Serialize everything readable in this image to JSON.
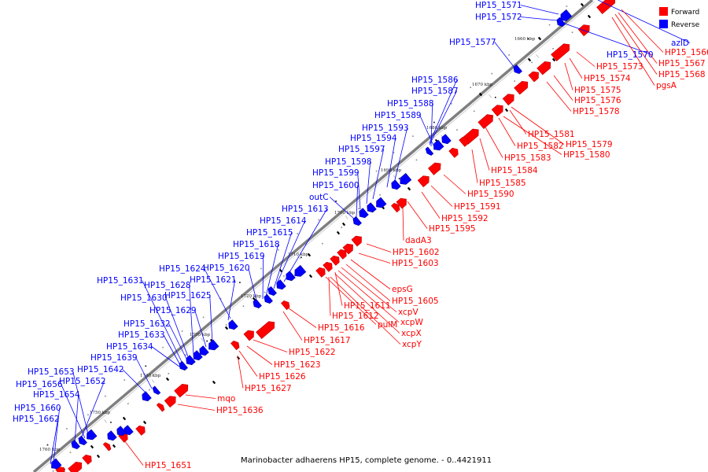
{
  "legend": {
    "forward_label": "Forward",
    "reverse_label": "Reverse",
    "forward_color": "#ff0000",
    "reverse_color": "#0000ff"
  },
  "footer": "Marinobacter adhaerens HP15, complete genome. - 0..4421911",
  "colors": {
    "backbone": "#808080",
    "tick": "#000000"
  },
  "scale_ticks": [
    {
      "label": "1660 kbp"
    },
    {
      "label": "1670 kbp"
    },
    {
      "label": "1680 kbp"
    },
    {
      "label": "1690 kbp"
    },
    {
      "label": "1700 kbp"
    },
    {
      "label": "1710 kbp"
    },
    {
      "label": "1720 kbp"
    },
    {
      "label": "1730 kbp"
    },
    {
      "label": "1740 kbp"
    },
    {
      "label": "1750 kbp"
    },
    {
      "label": "1760 kbp"
    }
  ],
  "reverse_labels": [
    "HP15_1571",
    "HP15_1572",
    "HP15_1577",
    "HP15_1586",
    "HP15_1587",
    "HP15_1588",
    "HP15_1589",
    "HP15_1593",
    "HP15_1594",
    "HP15_1597",
    "HP15_1598",
    "HP15_1599",
    "HP15_1600",
    "outC",
    "HP15_1613",
    "HP15_1614",
    "HP15_1615",
    "HP15_1618",
    "HP15_1619",
    "HP15_1620",
    "HP15_1624",
    "HP15_1621",
    "HP15_1631",
    "HP15_1628",
    "HP15_1630",
    "HP15_1625",
    "HP15_1629",
    "HP15_1632",
    "HP15_1633",
    "HP15_1634",
    "HP15_1639",
    "HP15_1653",
    "HP15_1642",
    "HP15_1656",
    "HP15_1652",
    "HP15_1654",
    "HP15_1660",
    "HP15_1662",
    "HP15_1570",
    "azlD"
  ],
  "forward_labels": [
    "HP15_1566",
    "HP15_1567",
    "HP15_1568",
    "pgsA",
    "HP15_1573",
    "HP15_1574",
    "HP15_1575",
    "HP15_1576",
    "HP15_1578",
    "HP15_1579",
    "HP15_1580",
    "HP15_1581",
    "HP15_1582",
    "HP15_1583",
    "HP15_1584",
    "HP15_1585",
    "HP15_1590",
    "HP15_1591",
    "HP15_1592",
    "HP15_1595",
    "dadA3",
    "HP15_1602",
    "HP15_1603",
    "epsG",
    "HP15_1605",
    "xcpV",
    "xcpW",
    "xcpX",
    "xcpY",
    "pulM",
    "HP15_1611",
    "HP15_1612",
    "HP15_1616",
    "HP15_1617",
    "HP15_1622",
    "HP15_1623",
    "HP15_1626",
    "HP15_1627",
    "mqo",
    "HP15_1636",
    "HP15_1651"
  ]
}
